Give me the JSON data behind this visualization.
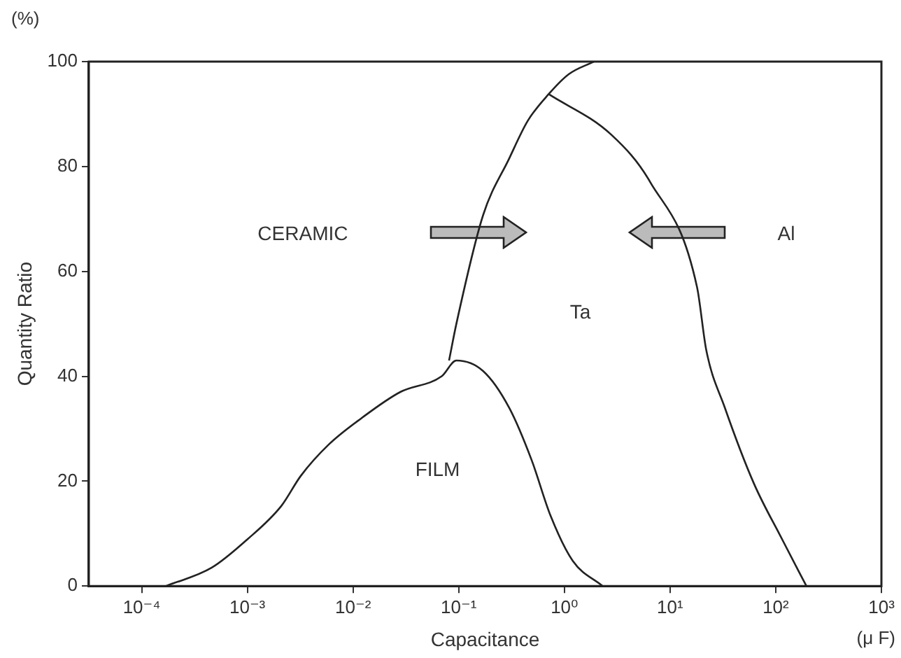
{
  "chart_data": {
    "type": "line",
    "xlabel": "Capacitance",
    "ylabel": "Quantity Ratio",
    "log": "x",
    "grid": false,
    "legend": false,
    "marker": "none",
    "line_style": "solid",
    "xlim": [
      3.16e-05,
      1000
    ],
    "xticks": [
      {
        "value": 0.0001,
        "label": "10⁻⁴"
      },
      {
        "value": 0.001,
        "label": "10⁻³"
      },
      {
        "value": 0.01,
        "label": "10⁻²"
      },
      {
        "value": 0.1,
        "label": "10⁻¹"
      },
      {
        "value": 1,
        "label": "10⁰"
      },
      {
        "value": 10,
        "label": "10¹"
      },
      {
        "value": 100,
        "label": "10²"
      },
      {
        "value": 1000,
        "label": "10³"
      }
    ],
    "ylim": [
      0,
      100
    ],
    "yticks": [
      0,
      20,
      40,
      60,
      80,
      100
    ],
    "series": [
      {
        "color": "#222222",
        "x": [
          0.00017,
          0.00046,
          0.001,
          0.0021,
          0.0032,
          0.0059,
          0.012,
          0.028,
          0.069,
          0.095,
          0.17,
          0.3,
          0.49,
          0.74,
          1.2,
          2.3
        ],
        "values": [
          0,
          3.5,
          8.9,
          15.3,
          21,
          27,
          32,
          37,
          40,
          43,
          41,
          34,
          24,
          13.4,
          4.8,
          0
        ]
      },
      {
        "color": "#222222",
        "x": [
          0.081,
          0.095,
          0.17,
          0.3,
          0.45,
          0.71,
          1.1,
          1.9
        ],
        "values": [
          43,
          50,
          70.7,
          81.5,
          88.7,
          93.8,
          97.6,
          100
        ]
      },
      {
        "color": "#222222",
        "x": [
          0.71,
          2.8,
          6.5,
          18,
          22,
          33,
          62,
          115,
          195
        ],
        "values": [
          93.8,
          86,
          77,
          57,
          45,
          34,
          19.6,
          8.9,
          0
        ]
      }
    ],
    "annotations": [
      "(%)",
      "(μ F)",
      "CERAMIC",
      "Ta",
      "Al",
      "FILM"
    ]
  }
}
